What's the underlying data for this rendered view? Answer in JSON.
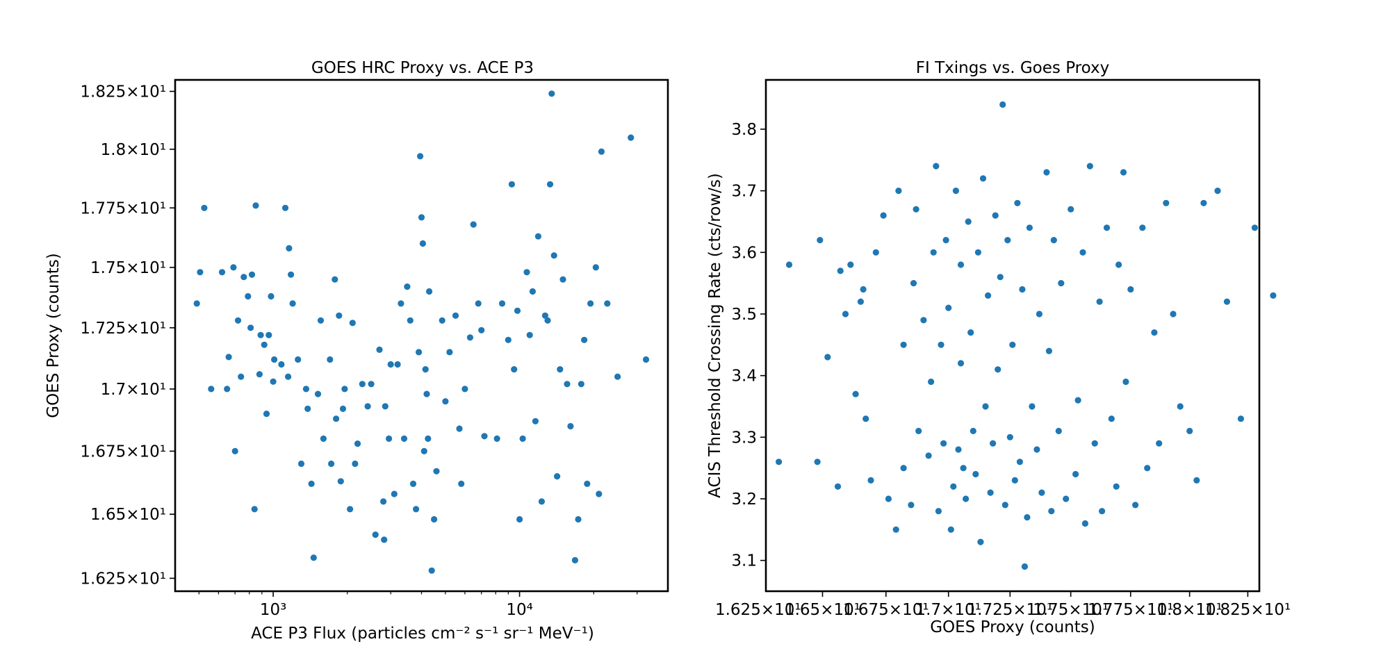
{
  "chart_data": [
    {
      "type": "scatter",
      "title": "GOES HRC Proxy vs. ACE P3",
      "xlabel": "ACE P3 Flux (particles cm⁻² s⁻¹ sr⁻¹ MeV⁻¹)",
      "ylabel": "GOES Proxy (counts)",
      "xscale": "log",
      "yscale": "log",
      "xlim": [
        400,
        40000
      ],
      "ylim": [
        16.2,
        18.3
      ],
      "xticks": [
        1000,
        10000
      ],
      "xtick_labels": [
        "10³",
        "10⁴"
      ],
      "yticks": [
        16.25,
        16.5,
        16.75,
        17.0,
        17.25,
        17.5,
        17.75,
        18.0,
        18.25
      ],
      "ytick_labels": [
        "1.625×10¹",
        "1.65×10¹",
        "1.675×10¹",
        "1.7×10¹",
        "1.725×10¹",
        "1.75×10¹",
        "1.775×10¹",
        "1.8×10¹",
        "1.825×10¹"
      ],
      "grid": false,
      "color": "#1f77b4",
      "points": [
        [
          490,
          17.35
        ],
        [
          505,
          17.48
        ],
        [
          525,
          17.75
        ],
        [
          560,
          17.0
        ],
        [
          620,
          17.48
        ],
        [
          650,
          17.0
        ],
        [
          660,
          17.13
        ],
        [
          690,
          17.5
        ],
        [
          700,
          16.75
        ],
        [
          720,
          17.28
        ],
        [
          740,
          17.05
        ],
        [
          760,
          17.46
        ],
        [
          790,
          17.38
        ],
        [
          810,
          17.25
        ],
        [
          820,
          17.47
        ],
        [
          840,
          16.52
        ],
        [
          850,
          17.76
        ],
        [
          880,
          17.06
        ],
        [
          890,
          17.22
        ],
        [
          920,
          17.18
        ],
        [
          940,
          16.9
        ],
        [
          960,
          17.22
        ],
        [
          980,
          17.38
        ],
        [
          1000,
          17.03
        ],
        [
          1010,
          17.12
        ],
        [
          1080,
          17.1
        ],
        [
          1120,
          17.75
        ],
        [
          1150,
          17.05
        ],
        [
          1160,
          17.58
        ],
        [
          1180,
          17.47
        ],
        [
          1200,
          17.35
        ],
        [
          1260,
          17.12
        ],
        [
          1300,
          16.7
        ],
        [
          1360,
          17.0
        ],
        [
          1380,
          16.92
        ],
        [
          1430,
          16.62
        ],
        [
          1460,
          16.33
        ],
        [
          1520,
          16.98
        ],
        [
          1560,
          17.28
        ],
        [
          1600,
          16.8
        ],
        [
          1700,
          17.12
        ],
        [
          1720,
          16.7
        ],
        [
          1780,
          17.45
        ],
        [
          1800,
          16.88
        ],
        [
          1850,
          17.3
        ],
        [
          1880,
          16.63
        ],
        [
          1920,
          16.92
        ],
        [
          1950,
          17.0
        ],
        [
          2050,
          16.52
        ],
        [
          2100,
          17.27
        ],
        [
          2150,
          16.7
        ],
        [
          2200,
          16.78
        ],
        [
          2300,
          17.02
        ],
        [
          2420,
          16.93
        ],
        [
          2500,
          17.02
        ],
        [
          2600,
          16.42
        ],
        [
          2700,
          17.16
        ],
        [
          2800,
          16.55
        ],
        [
          2820,
          16.4
        ],
        [
          2850,
          16.93
        ],
        [
          2950,
          16.8
        ],
        [
          3000,
          17.1
        ],
        [
          3100,
          16.58
        ],
        [
          3200,
          17.1
        ],
        [
          3300,
          17.35
        ],
        [
          3400,
          16.8
        ],
        [
          3500,
          17.42
        ],
        [
          3600,
          17.28
        ],
        [
          3700,
          16.62
        ],
        [
          3800,
          16.52
        ],
        [
          3900,
          17.15
        ],
        [
          3950,
          17.97
        ],
        [
          4000,
          17.71
        ],
        [
          4050,
          17.6
        ],
        [
          4100,
          16.75
        ],
        [
          4150,
          17.08
        ],
        [
          4200,
          16.98
        ],
        [
          4250,
          16.8
        ],
        [
          4300,
          17.4
        ],
        [
          4400,
          16.28
        ],
        [
          4500,
          16.48
        ],
        [
          4600,
          16.67
        ],
        [
          4850,
          17.28
        ],
        [
          5000,
          16.95
        ],
        [
          5200,
          17.15
        ],
        [
          5500,
          17.3
        ],
        [
          5700,
          16.84
        ],
        [
          5800,
          16.62
        ],
        [
          6000,
          17.0
        ],
        [
          6300,
          17.21
        ],
        [
          6500,
          17.68
        ],
        [
          6800,
          17.35
        ],
        [
          7000,
          17.24
        ],
        [
          7200,
          16.81
        ],
        [
          8100,
          16.8
        ],
        [
          8500,
          17.35
        ],
        [
          9000,
          17.2
        ],
        [
          9300,
          17.85
        ],
        [
          9500,
          17.08
        ],
        [
          9800,
          17.32
        ],
        [
          10000,
          16.48
        ],
        [
          10300,
          16.8
        ],
        [
          10700,
          17.48
        ],
        [
          11000,
          17.22
        ],
        [
          11300,
          17.4
        ],
        [
          11600,
          16.87
        ],
        [
          11900,
          17.63
        ],
        [
          12300,
          16.55
        ],
        [
          12700,
          17.3
        ],
        [
          13000,
          17.28
        ],
        [
          13300,
          17.85
        ],
        [
          13500,
          18.24
        ],
        [
          13800,
          17.55
        ],
        [
          14200,
          16.65
        ],
        [
          14600,
          17.08
        ],
        [
          15000,
          17.45
        ],
        [
          15600,
          17.02
        ],
        [
          16100,
          16.85
        ],
        [
          16800,
          16.32
        ],
        [
          17300,
          16.48
        ],
        [
          17800,
          17.02
        ],
        [
          18300,
          17.2
        ],
        [
          18800,
          16.62
        ],
        [
          19400,
          17.35
        ],
        [
          20400,
          17.5
        ],
        [
          21000,
          16.58
        ],
        [
          21500,
          17.99
        ],
        [
          22700,
          17.35
        ],
        [
          25000,
          17.05
        ],
        [
          28300,
          18.05
        ],
        [
          32600,
          17.12
        ]
      ]
    },
    {
      "type": "scatter",
      "title": "FI Txings vs. Goes Proxy",
      "xlabel": "GOES Proxy (counts)",
      "ylabel": "ACIS Threshold Crossing Rate (cts/row/s)",
      "xscale": "log",
      "xlim": [
        16.28,
        18.3
      ],
      "ylim": [
        3.05,
        3.88
      ],
      "xticks": [
        16.25,
        16.5,
        16.75,
        17.0,
        17.25,
        17.5,
        17.75,
        18.0,
        18.25
      ],
      "xtick_labels": [
        "1.625×10¹",
        "1.65×10¹",
        "1.675×10¹",
        "1.7×10¹",
        "1.725×10¹",
        "1.75×10¹",
        "1.775×10¹",
        "1.8×10¹",
        "1.825×10¹"
      ],
      "yticks": [
        3.1,
        3.2,
        3.3,
        3.4,
        3.5,
        3.6,
        3.7,
        3.8
      ],
      "ytick_labels": [
        "3.1",
        "3.2",
        "3.3",
        "3.4",
        "3.5",
        "3.6",
        "3.7",
        "3.8"
      ],
      "grid": false,
      "color": "#1f77b4",
      "points": [
        [
          16.33,
          3.26
        ],
        [
          16.37,
          3.58
        ],
        [
          16.48,
          3.26
        ],
        [
          16.49,
          3.62
        ],
        [
          16.52,
          3.43
        ],
        [
          16.56,
          3.22
        ],
        [
          16.57,
          3.57
        ],
        [
          16.59,
          3.5
        ],
        [
          16.61,
          3.58
        ],
        [
          16.63,
          3.37
        ],
        [
          16.65,
          3.52
        ],
        [
          16.66,
          3.54
        ],
        [
          16.67,
          3.33
        ],
        [
          16.69,
          3.23
        ],
        [
          16.71,
          3.6
        ],
        [
          16.74,
          3.66
        ],
        [
          16.76,
          3.2
        ],
        [
          16.79,
          3.15
        ],
        [
          16.8,
          3.7
        ],
        [
          16.82,
          3.25
        ],
        [
          16.82,
          3.45
        ],
        [
          16.85,
          3.19
        ],
        [
          16.86,
          3.55
        ],
        [
          16.87,
          3.67
        ],
        [
          16.88,
          3.31
        ],
        [
          16.9,
          3.49
        ],
        [
          16.92,
          3.27
        ],
        [
          16.93,
          3.39
        ],
        [
          16.94,
          3.6
        ],
        [
          16.95,
          3.74
        ],
        [
          16.96,
          3.18
        ],
        [
          16.97,
          3.45
        ],
        [
          16.98,
          3.29
        ],
        [
          16.99,
          3.62
        ],
        [
          17.0,
          3.51
        ],
        [
          17.01,
          3.15
        ],
        [
          17.02,
          3.22
        ],
        [
          17.03,
          3.7
        ],
        [
          17.04,
          3.28
        ],
        [
          17.05,
          3.58
        ],
        [
          17.05,
          3.42
        ],
        [
          17.06,
          3.25
        ],
        [
          17.07,
          3.2
        ],
        [
          17.08,
          3.65
        ],
        [
          17.09,
          3.47
        ],
        [
          17.1,
          3.31
        ],
        [
          17.11,
          3.24
        ],
        [
          17.12,
          3.6
        ],
        [
          17.13,
          3.13
        ],
        [
          17.14,
          3.72
        ],
        [
          17.15,
          3.35
        ],
        [
          17.16,
          3.53
        ],
        [
          17.17,
          3.21
        ],
        [
          17.18,
          3.29
        ],
        [
          17.19,
          3.66
        ],
        [
          17.2,
          3.41
        ],
        [
          17.21,
          3.56
        ],
        [
          17.22,
          3.84
        ],
        [
          17.23,
          3.19
        ],
        [
          17.24,
          3.62
        ],
        [
          17.25,
          3.3
        ],
        [
          17.26,
          3.45
        ],
        [
          17.27,
          3.23
        ],
        [
          17.28,
          3.68
        ],
        [
          17.29,
          3.26
        ],
        [
          17.3,
          3.54
        ],
        [
          17.31,
          3.09
        ],
        [
          17.32,
          3.17
        ],
        [
          17.33,
          3.64
        ],
        [
          17.34,
          3.35
        ],
        [
          17.36,
          3.28
        ],
        [
          17.37,
          3.5
        ],
        [
          17.38,
          3.21
        ],
        [
          17.4,
          3.73
        ],
        [
          17.41,
          3.44
        ],
        [
          17.42,
          3.18
        ],
        [
          17.43,
          3.62
        ],
        [
          17.45,
          3.31
        ],
        [
          17.46,
          3.55
        ],
        [
          17.48,
          3.2
        ],
        [
          17.5,
          3.67
        ],
        [
          17.52,
          3.24
        ],
        [
          17.53,
          3.36
        ],
        [
          17.55,
          3.6
        ],
        [
          17.56,
          3.16
        ],
        [
          17.58,
          3.74
        ],
        [
          17.6,
          3.29
        ],
        [
          17.62,
          3.52
        ],
        [
          17.63,
          3.18
        ],
        [
          17.65,
          3.64
        ],
        [
          17.67,
          3.33
        ],
        [
          17.69,
          3.22
        ],
        [
          17.7,
          3.58
        ],
        [
          17.72,
          3.73
        ],
        [
          17.73,
          3.39
        ],
        [
          17.75,
          3.54
        ],
        [
          17.77,
          3.19
        ],
        [
          17.8,
          3.64
        ],
        [
          17.82,
          3.25
        ],
        [
          17.85,
          3.47
        ],
        [
          17.87,
          3.29
        ],
        [
          17.9,
          3.68
        ],
        [
          17.93,
          3.5
        ],
        [
          17.96,
          3.35
        ],
        [
          18.0,
          3.31
        ],
        [
          18.03,
          3.23
        ],
        [
          18.06,
          3.68
        ],
        [
          18.12,
          3.7
        ],
        [
          18.16,
          3.52
        ],
        [
          18.22,
          3.33
        ],
        [
          18.28,
          3.64
        ],
        [
          18.36,
          3.53
        ]
      ]
    }
  ]
}
